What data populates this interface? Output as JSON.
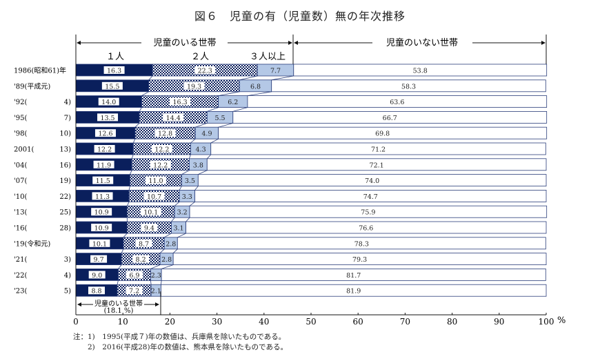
{
  "title": "図６　児童の有（児童数）無の年次推移",
  "header": {
    "with_children": "児童のいる世帯",
    "without_children": "児童のいない世帯",
    "one": "１人",
    "two": "２人",
    "three_plus": "３人以上"
  },
  "annotation": {
    "label": "児童のいる世帯",
    "value": "(18.1 %)"
  },
  "unit": "%",
  "notes": [
    "注：1)　1995(平成７)年の数値は、兵庫県を除いたものである。",
    "　　2)　2016(平成28)年の数値は、熊本県を除いたものである。"
  ],
  "colors": {
    "one": "#0a1f5c",
    "two_checker": "#0a1f5c",
    "three_plus": "#b4c8e6",
    "none": "#ffffff",
    "border": "#2a3d7a"
  },
  "chart_data": {
    "type": "bar",
    "orientation": "horizontal",
    "stacked": true,
    "xlim": [
      0,
      100
    ],
    "xticks": [
      0,
      10,
      20,
      30,
      40,
      50,
      60,
      70,
      80,
      90,
      100
    ],
    "categories": [
      {
        "year": "1986(昭和61)年",
        "era": ""
      },
      {
        "year": "'89(平成元)",
        "era": ""
      },
      {
        "year": "'92(",
        "era": "4)"
      },
      {
        "year": "'95(",
        "era": "7)"
      },
      {
        "year": "'98(",
        "era": "10)"
      },
      {
        "year": "2001(",
        "era": "13)"
      },
      {
        "year": "'04(",
        "era": "16)"
      },
      {
        "year": "'07(",
        "era": "19)"
      },
      {
        "year": "'10(",
        "era": "22)"
      },
      {
        "year": "'13(",
        "era": "25)"
      },
      {
        "year": "'16(",
        "era": "28)"
      },
      {
        "year": "'19(令和元)",
        "era": ""
      },
      {
        "year": "'21(",
        "era": "3)"
      },
      {
        "year": "'22(",
        "era": "4)"
      },
      {
        "year": "'23(",
        "era": "5)"
      }
    ],
    "series": [
      {
        "name": "１人",
        "values": [
          16.3,
          15.5,
          14.0,
          13.5,
          12.6,
          12.2,
          11.9,
          11.5,
          11.3,
          10.9,
          10.9,
          10.1,
          9.7,
          9.0,
          8.8
        ]
      },
      {
        "name": "２人",
        "values": [
          22.3,
          19.3,
          16.3,
          14.4,
          12.8,
          12.2,
          12.2,
          11.0,
          10.7,
          10.1,
          9.4,
          8.7,
          8.2,
          6.9,
          7.2
        ]
      },
      {
        "name": "３人以上",
        "values": [
          7.7,
          6.8,
          6.2,
          5.5,
          4.9,
          4.3,
          3.8,
          3.5,
          3.3,
          3.2,
          3.1,
          2.8,
          2.8,
          2.3,
          2.1
        ]
      },
      {
        "name": "児童のいない世帯",
        "values": [
          53.8,
          58.3,
          63.6,
          66.7,
          69.8,
          71.2,
          72.1,
          74.0,
          74.7,
          75.9,
          76.6,
          78.3,
          79.3,
          81.7,
          81.9
        ]
      }
    ]
  }
}
